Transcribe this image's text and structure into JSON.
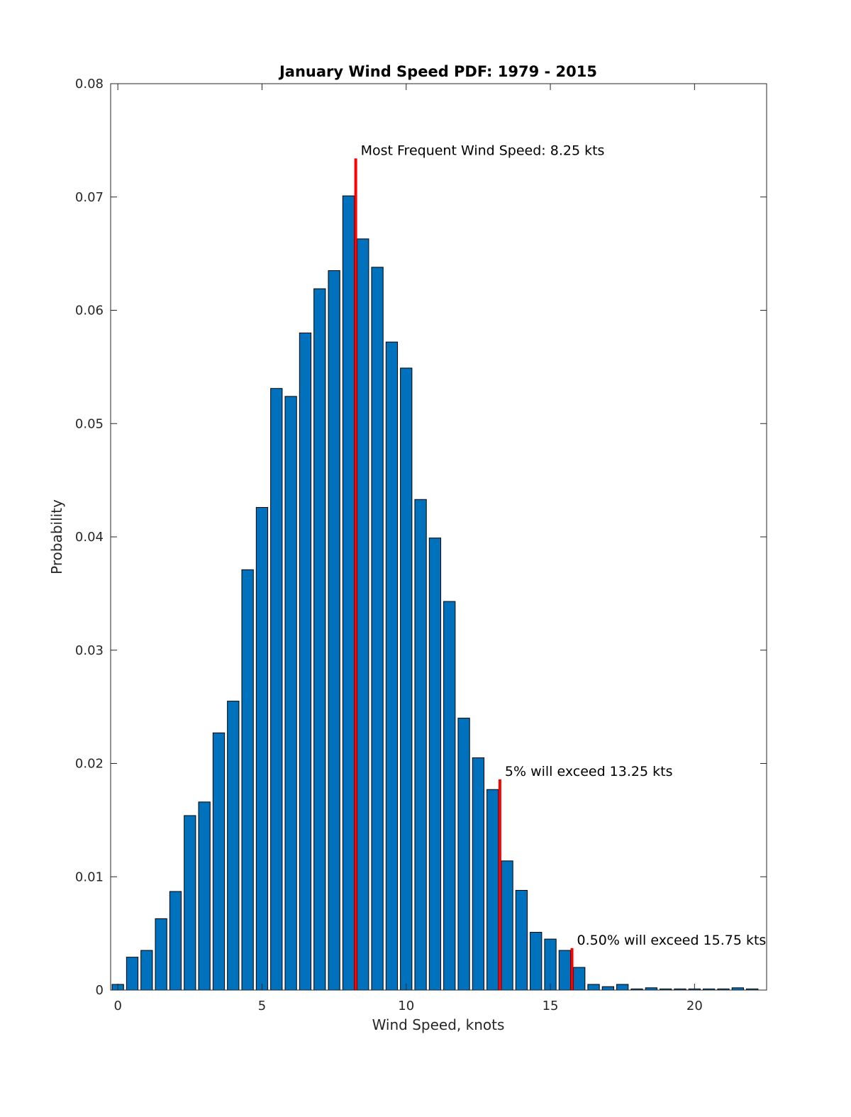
{
  "chart_data": {
    "type": "bar",
    "title": "January Wind Speed PDF: 1979 - 2015",
    "xlabel": "Wind Speed, knots",
    "ylabel": "Probability",
    "xlim": [
      -0.25,
      22.5
    ],
    "ylim": [
      0,
      0.08
    ],
    "xticks": [
      0,
      5,
      10,
      15,
      20
    ],
    "yticks": [
      0,
      0.01,
      0.02,
      0.03,
      0.04,
      0.05,
      0.06,
      0.07,
      0.08
    ],
    "ytick_labels": [
      "0",
      "0.01",
      "0.02",
      "0.03",
      "0.04",
      "0.05",
      "0.06",
      "0.07",
      "0.08"
    ],
    "bar_color": "#0072BD",
    "bar_edge_color": "#000000",
    "bar_width": 0.4,
    "x": [
      0,
      0.5,
      1,
      1.5,
      2,
      2.5,
      3,
      3.5,
      4,
      4.5,
      5,
      5.5,
      6,
      6.5,
      7,
      7.5,
      8,
      8.5,
      9,
      9.5,
      10,
      10.5,
      11,
      11.5,
      12,
      12.5,
      13,
      13.5,
      14,
      14.5,
      15,
      15.5,
      16,
      16.5,
      17,
      17.5,
      18,
      18.5,
      19,
      19.5,
      20,
      20.5,
      21,
      21.5,
      22
    ],
    "values": [
      0.0005,
      0.0029,
      0.0035,
      0.0063,
      0.0087,
      0.0154,
      0.0166,
      0.0227,
      0.0255,
      0.0371,
      0.0426,
      0.0531,
      0.0524,
      0.058,
      0.0619,
      0.0635,
      0.0701,
      0.0663,
      0.0638,
      0.0572,
      0.0549,
      0.0433,
      0.0399,
      0.0343,
      0.024,
      0.0205,
      0.0177,
      0.0114,
      0.0088,
      0.0051,
      0.0045,
      0.0035,
      0.002,
      0.0005,
      0.0003,
      0.0005,
      0.0001,
      0.0002,
      0.0001,
      0.0001,
      0.0001,
      0.0001,
      0.0001,
      0.0002,
      0.0001
    ],
    "marker_color": "#FF0000",
    "markers": [
      {
        "x": 8.25,
        "top": 0.0734,
        "label": "Most Frequent Wind Speed: 8.25 kts"
      },
      {
        "x": 13.25,
        "top": 0.0186,
        "label": "5% will exceed 13.25 kts"
      },
      {
        "x": 15.75,
        "top": 0.0037,
        "label": "0.50% will exceed 15.75 kts"
      }
    ]
  }
}
